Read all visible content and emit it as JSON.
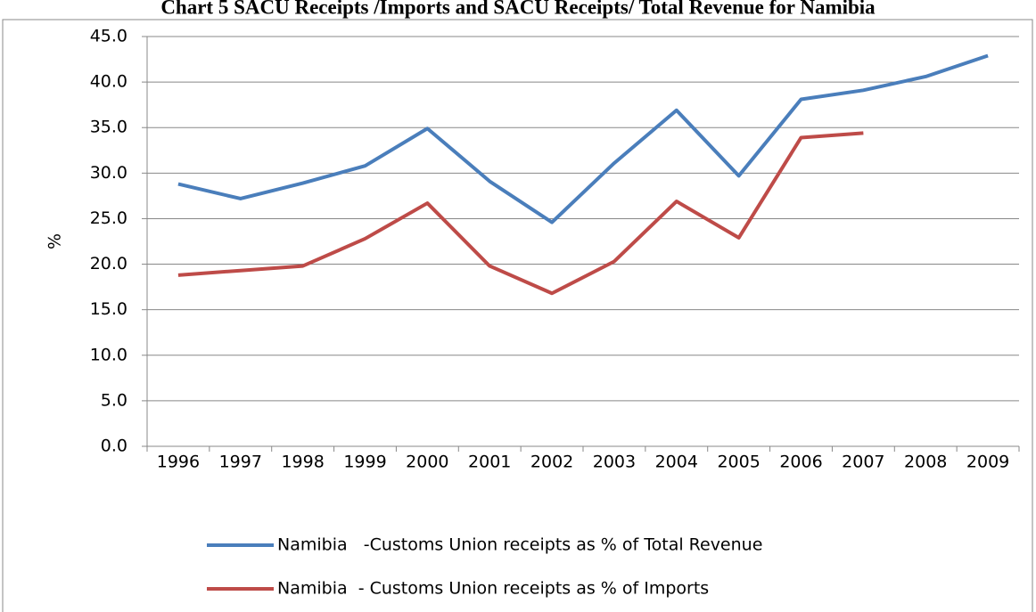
{
  "chart_data": {
    "type": "line",
    "title": "Chart 5  SACU Receipts /Imports and SACU Receipts/ Total Revenue for Namibia",
    "y_label": "%",
    "categories": [
      "1996",
      "1997",
      "1998",
      "1999",
      "2000",
      "2001",
      "2002",
      "2003",
      "2004",
      "2005",
      "2006",
      "2007",
      "2008",
      "2009"
    ],
    "series": [
      {
        "name": "Namibia   -Customs Union receipts as % of Total Revenue",
        "color": "#4a7ebb",
        "values": [
          28.8,
          27.2,
          28.9,
          30.8,
          34.9,
          29.1,
          24.6,
          31.1,
          36.9,
          29.7,
          38.1,
          39.1,
          40.6,
          42.9
        ]
      },
      {
        "name": "Namibia  - Customs Union receipts as % of Imports",
        "color": "#be4b48",
        "values": [
          18.8,
          19.3,
          19.8,
          22.8,
          26.7,
          19.8,
          16.8,
          20.3,
          26.9,
          22.9,
          33.9,
          34.4,
          null,
          null
        ]
      }
    ],
    "ylim": [
      0,
      45
    ],
    "yticks": [
      {
        "value": 0,
        "label": "0.0"
      },
      {
        "value": 5,
        "label": "5.0"
      },
      {
        "value": 10,
        "label": "10.0"
      },
      {
        "value": 15,
        "label": "15.0"
      },
      {
        "value": 20,
        "label": "20.0"
      },
      {
        "value": 25,
        "label": "25.0"
      },
      {
        "value": 30,
        "label": "30.0"
      },
      {
        "value": 35,
        "label": "35.0"
      },
      {
        "value": 40,
        "label": "40.0"
      },
      {
        "value": 45,
        "label": "45.0"
      }
    ],
    "grid": true,
    "legend": "bottom"
  }
}
